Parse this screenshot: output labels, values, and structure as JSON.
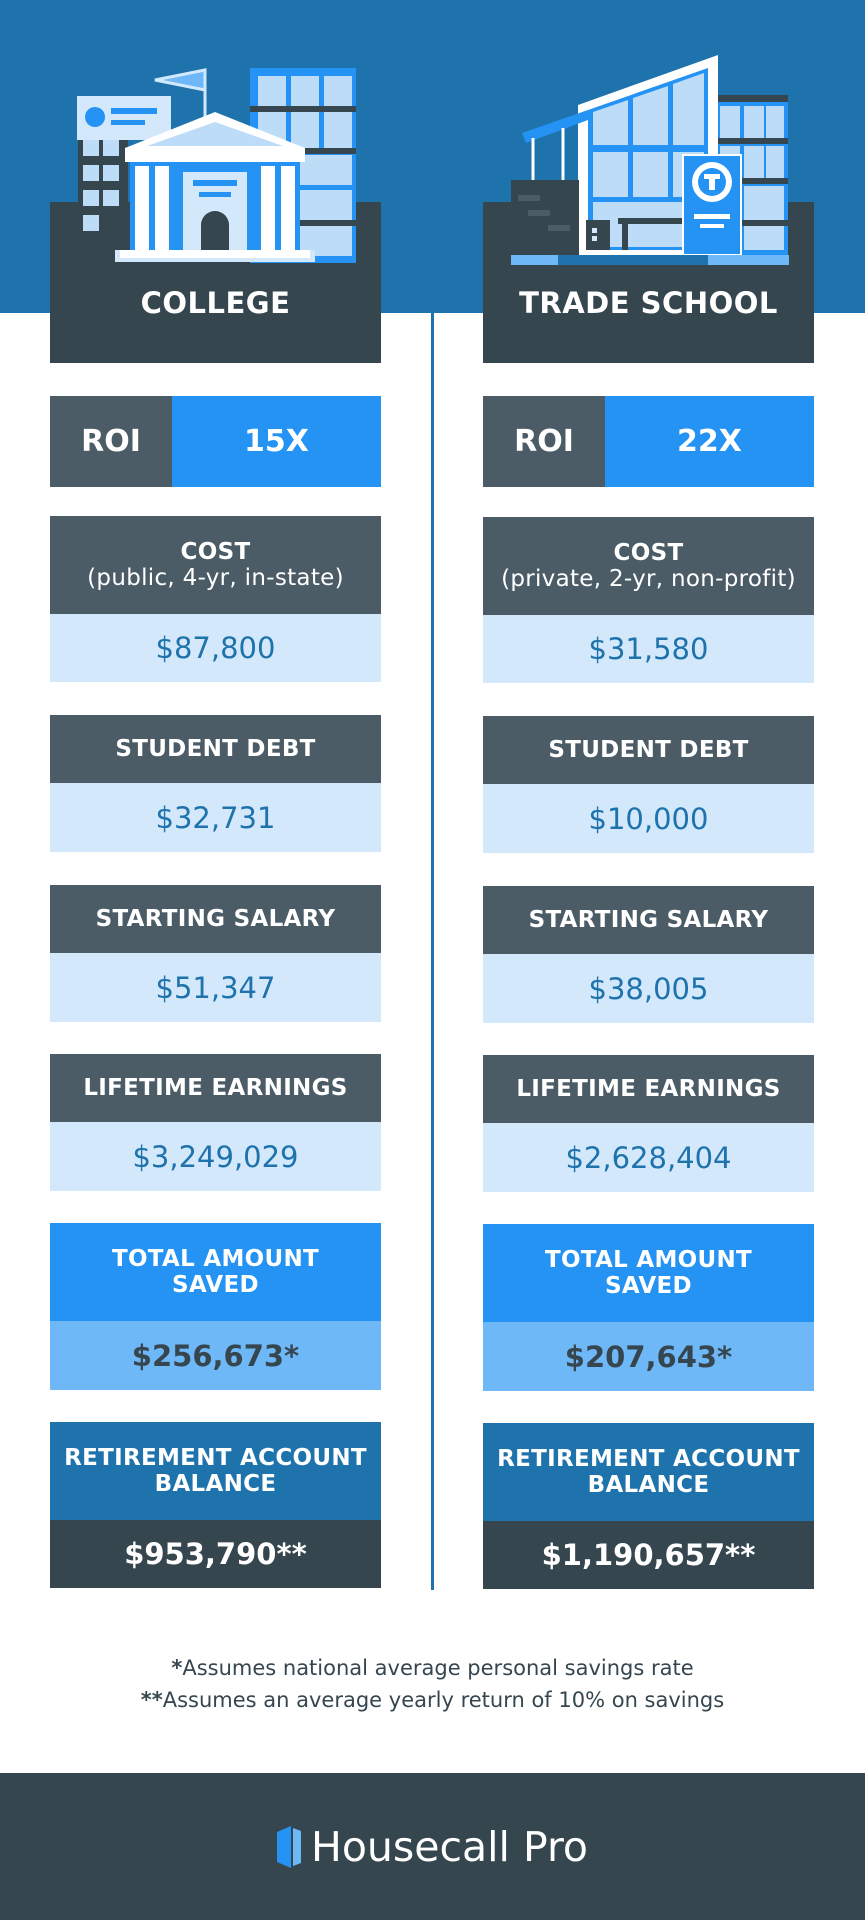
{
  "colors": {
    "band_blue": "#1e73ad",
    "dark_slate": "#36464f",
    "slate": "#4b5c66",
    "bright_blue": "#2493f4",
    "light_blue": "#d4e8fb",
    "mid_blue": "#6fb8f8"
  },
  "college": {
    "title": "COLLEGE",
    "icon": "college-building-icon",
    "roi_label": "ROI",
    "roi_value": "15X",
    "cost_label": "COST",
    "cost_sub": "(public, 4-yr, in-state)",
    "cost_value": "$87,800",
    "debt_label": "STUDENT DEBT",
    "debt_value": "$32,731",
    "salary_label": "STARTING SALARY",
    "salary_value": "$51,347",
    "lifetime_label": "LIFETIME EARNINGS",
    "lifetime_value": "$3,249,029",
    "saved_label_1": "TOTAL AMOUNT",
    "saved_label_2": "SAVED",
    "saved_value": "$256,673*",
    "retire_label_1": "RETIREMENT ACCOUNT",
    "retire_label_2": "BALANCE",
    "retire_value": "$953,790**"
  },
  "trade": {
    "title": "TRADE SCHOOL",
    "icon": "trade-school-building-icon",
    "roi_label": "ROI",
    "roi_value": "22X",
    "cost_label": "COST",
    "cost_sub": "(private, 2-yr, non-profit)",
    "cost_value": "$31,580",
    "debt_label": "STUDENT DEBT",
    "debt_value": "$10,000",
    "salary_label": "STARTING SALARY",
    "salary_value": "$38,005",
    "lifetime_label": "LIFETIME EARNINGS",
    "lifetime_value": "$2,628,404",
    "saved_label_1": "TOTAL AMOUNT",
    "saved_label_2": "SAVED",
    "saved_value": "$207,643*",
    "retire_label_1": "RETIREMENT ACCOUNT",
    "retire_label_2": "BALANCE",
    "retire_value": "$1,190,657**"
  },
  "notes": {
    "mark_1": "*",
    "text_1": "Assumes national average personal savings rate",
    "mark_2": "**",
    "text_2": "Assumes an average yearly return of 10% on savings"
  },
  "footer": {
    "brand": "Housecall Pro",
    "logo_icon": "housecall-pro-logo-icon"
  }
}
